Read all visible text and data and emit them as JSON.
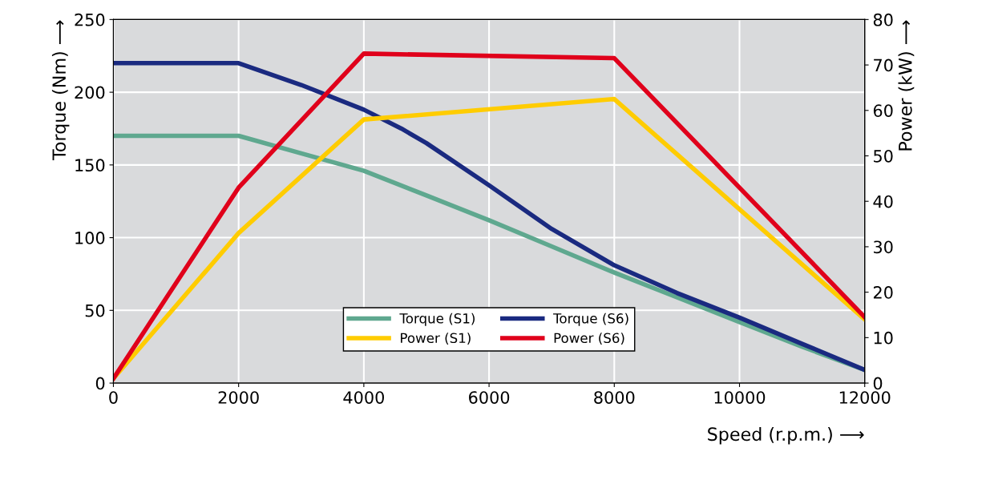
{
  "chart_data": {
    "type": "line",
    "xlabel": "Speed (r.p.m.) ⟶",
    "ylabel": "Torque (Nm) ⟶",
    "y2label": "Power (kW) ⟶",
    "xlim": [
      0,
      12000
    ],
    "xticks": [
      0,
      2000,
      4000,
      6000,
      8000,
      10000,
      12000
    ],
    "ylim": [
      0,
      250
    ],
    "yticks": [
      0,
      50,
      100,
      150,
      200,
      250
    ],
    "y2lim": [
      0,
      80
    ],
    "y2ticks": [
      0,
      10,
      20,
      30,
      40,
      50,
      60,
      70,
      80
    ],
    "grid": true,
    "legend": "bottom",
    "line_style": "solid",
    "series": [
      {
        "name": "Torque (S1)",
        "color": "#5fa88f",
        "x": [
          0,
          2000,
          3000,
          4000,
          5000,
          6000,
          7000,
          8000,
          9000,
          10000,
          11000,
          12000
        ],
        "values": [
          170,
          170,
          158,
          146,
          129,
          112,
          94,
          76,
          59,
          42,
          25,
          9
        ]
      },
      {
        "name": "Torque (S6)",
        "color": "#1a2a80",
        "x": [
          0,
          2000,
          3000,
          4000,
          4600,
          5000,
          6000,
          7000,
          8000,
          9000,
          10000,
          11000,
          12000
        ],
        "values": [
          220,
          220,
          205,
          188,
          175,
          165,
          136,
          106,
          81,
          62,
          45,
          27,
          9
        ]
      },
      {
        "name": "Power (S1)",
        "color": "#ffcc00",
        "axis": "y2",
        "x": [
          0,
          2000,
          4000,
          8000,
          12000
        ],
        "values": [
          1,
          33,
          58,
          62.5,
          14
        ]
      },
      {
        "name": "Power (S6)",
        "color": "#e0001b",
        "axis": "y2",
        "x": [
          0,
          2000,
          4000,
          8000,
          12000
        ],
        "values": [
          1,
          43,
          72.5,
          71.5,
          14.5
        ]
      }
    ]
  }
}
